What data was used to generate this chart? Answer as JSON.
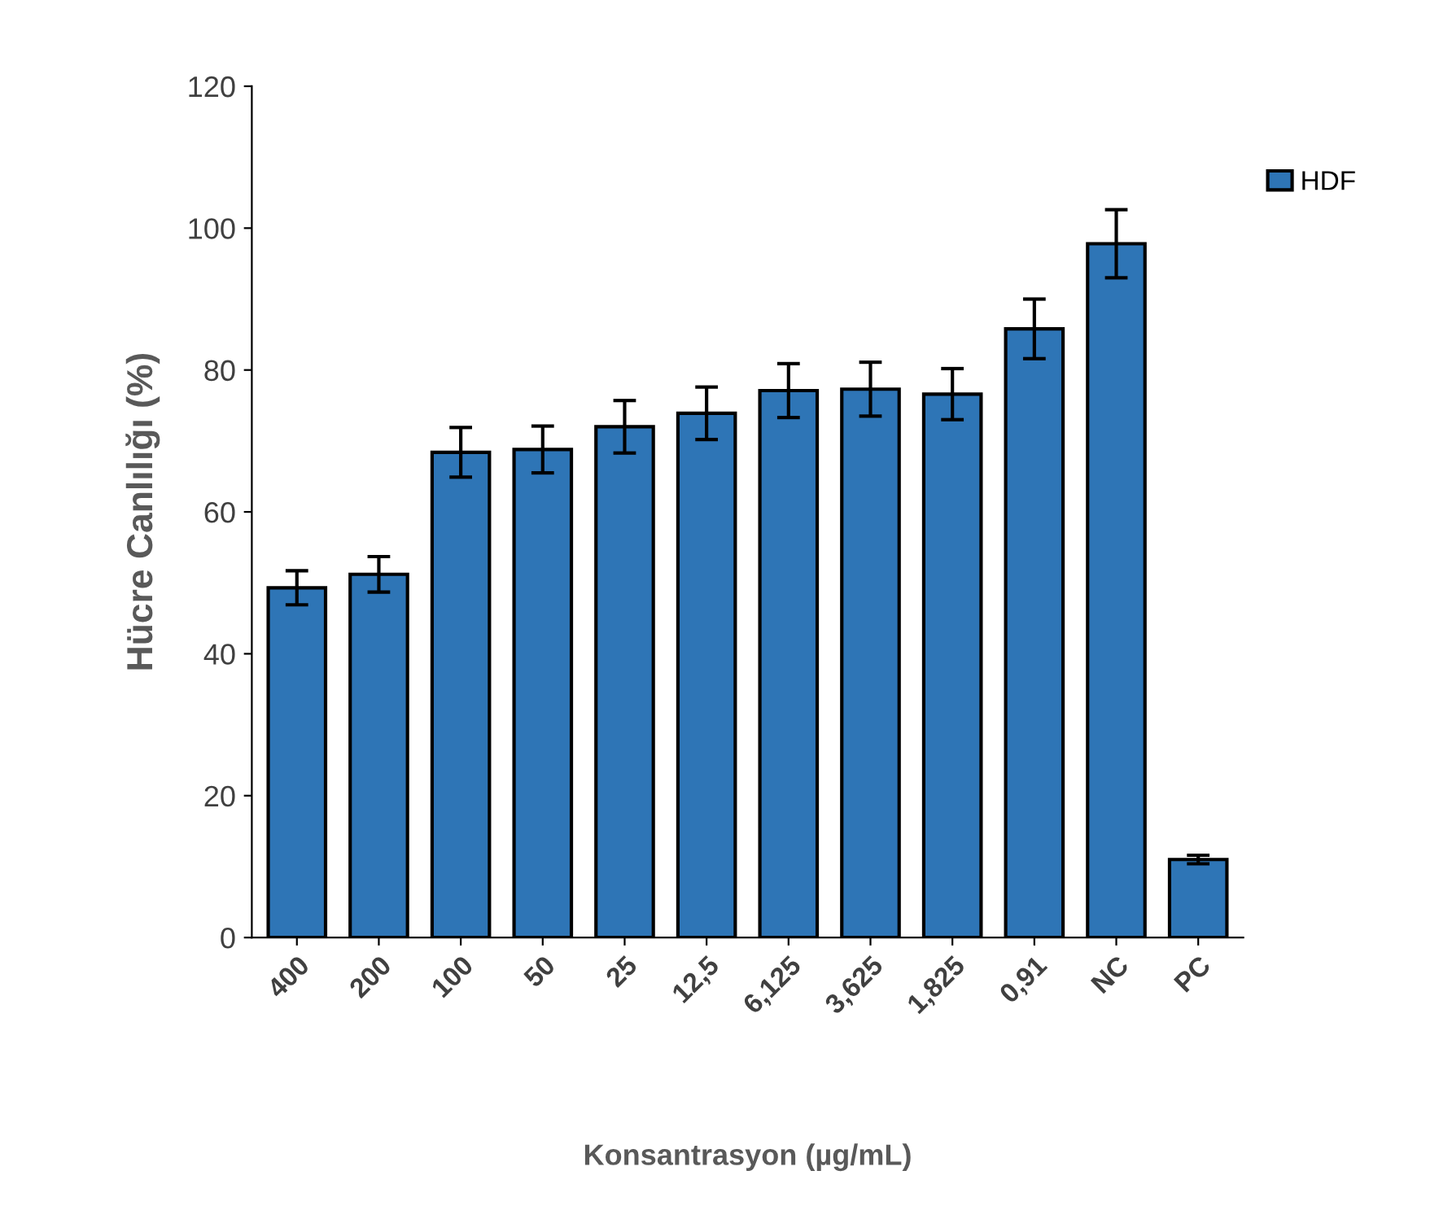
{
  "chart_data": {
    "type": "bar",
    "xlabel": "Konsantrasyon (µg/mL)",
    "ylabel": "Hücre Canlılığı (%)",
    "categories": [
      "400",
      "200",
      "100",
      "50",
      "25",
      "12,5",
      "6,125",
      "3,625",
      "1,825",
      "0,91",
      "NC",
      "PC"
    ],
    "series": [
      {
        "name": "HDF",
        "color": "#2e75b6",
        "values": [
          49.3,
          51.2,
          68.4,
          68.8,
          72,
          73.9,
          77.1,
          77.3,
          76.6,
          85.8,
          97.8,
          11
        ],
        "errors": [
          2.4,
          2.5,
          3.5,
          3.3,
          3.7,
          3.7,
          3.8,
          3.8,
          3.6,
          4.2,
          4.8,
          0.6
        ]
      }
    ],
    "ylim": [
      0,
      120
    ],
    "yticks": [
      0,
      20,
      40,
      60,
      80,
      100,
      120
    ],
    "grid": false,
    "legend": "top right"
  }
}
